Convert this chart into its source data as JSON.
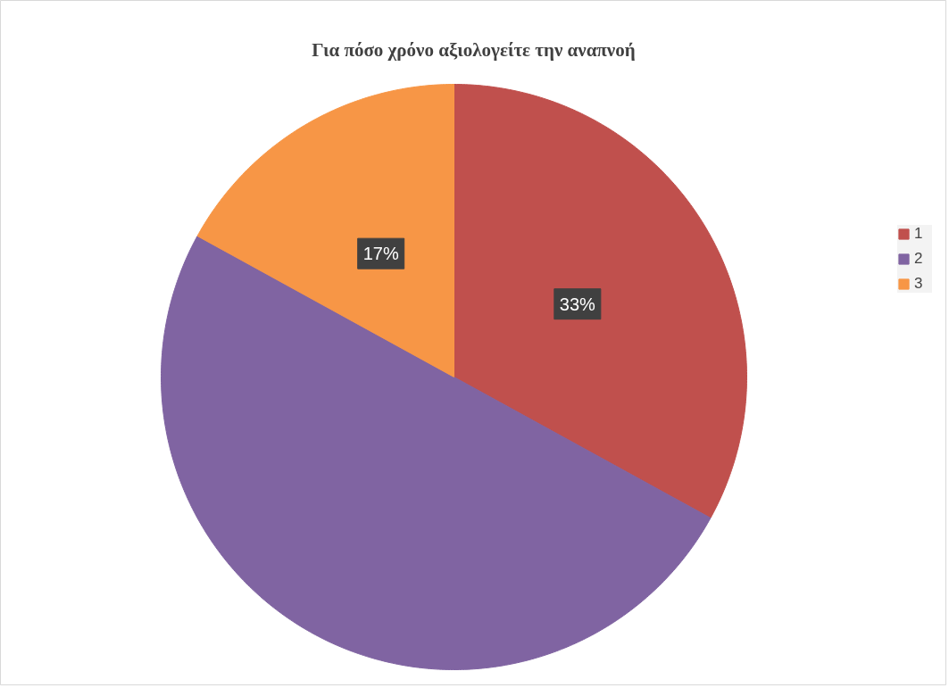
{
  "chart_data": {
    "type": "pie",
    "title": "Για πόσο χρόνο αξιολογείτε την αναπνοή",
    "categories": [
      "1",
      "2",
      "3"
    ],
    "values": [
      33,
      50,
      17
    ],
    "colors": [
      "#c0504d",
      "#8064a2",
      "#f79646"
    ],
    "value_labels": [
      "33%",
      null,
      "17%"
    ],
    "legend": "right"
  }
}
